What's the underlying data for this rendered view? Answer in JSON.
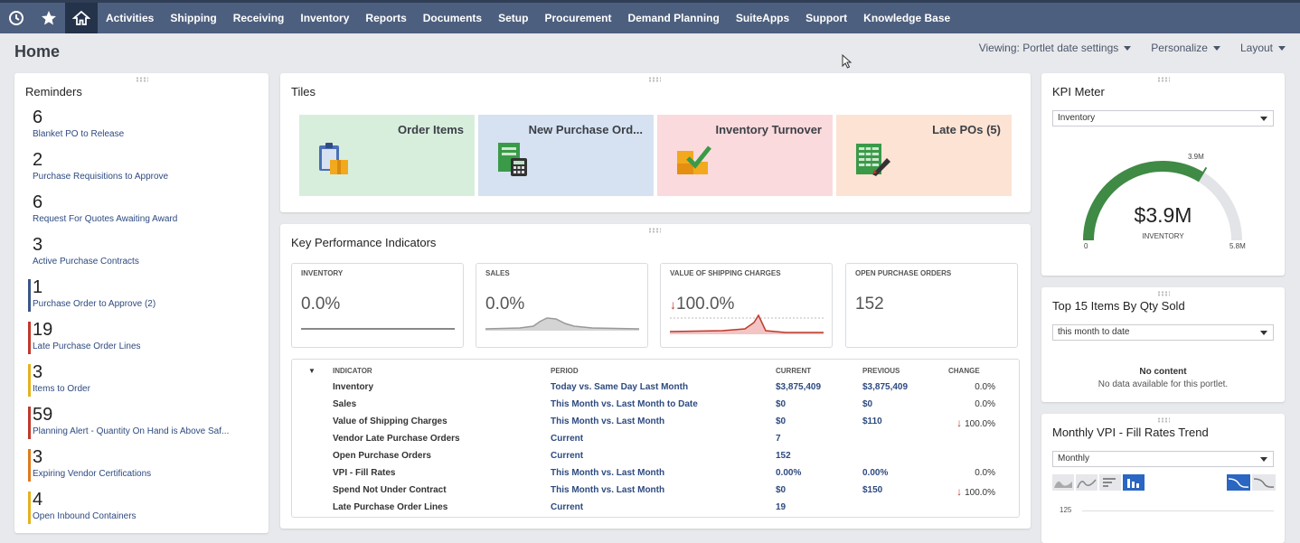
{
  "nav": {
    "items": [
      "Activities",
      "Shipping",
      "Receiving",
      "Inventory",
      "Reports",
      "Documents",
      "Setup",
      "Procurement",
      "Demand Planning",
      "SuiteApps",
      "Support",
      "Knowledge Base"
    ],
    "icons": [
      "recent-icon",
      "star-icon",
      "home-icon"
    ]
  },
  "page": {
    "title": "Home",
    "actions": [
      "Viewing: Portlet date settings",
      "Personalize",
      "Layout"
    ]
  },
  "reminders": {
    "title": "Reminders",
    "items": [
      {
        "count": "6",
        "label": "Blanket PO to Release",
        "color": ""
      },
      {
        "count": "2",
        "label": "Purchase Requisitions to Approve",
        "color": ""
      },
      {
        "count": "6",
        "label": "Request For Quotes Awaiting Award",
        "color": ""
      },
      {
        "count": "3",
        "label": "Active Purchase Contracts",
        "color": ""
      },
      {
        "count": "1",
        "label": "Purchase Order to Approve (2)",
        "color": "#3b5688"
      },
      {
        "count": "19",
        "label": "Late Purchase Order Lines",
        "color": "#c0392b"
      },
      {
        "count": "3",
        "label": "Items to Order",
        "color": "#e5b21f"
      },
      {
        "count": "59",
        "label": "Planning Alert - Quantity On Hand is Above Saf...",
        "color": "#c0392b"
      },
      {
        "count": "3",
        "label": "Expiring Vendor Certifications",
        "color": "#e07b1f"
      },
      {
        "count": "4",
        "label": "Open Inbound Containers",
        "color": "#e5b21f"
      }
    ]
  },
  "tiles": {
    "title": "Tiles",
    "items": [
      {
        "label": "Order Items",
        "bg": "#d8eedd"
      },
      {
        "label": "New Purchase Ord...",
        "bg": "#d6e2f2"
      },
      {
        "label": "Inventory Turnover",
        "bg": "#fadadd"
      },
      {
        "label": "Late POs (5)",
        "bg": "#fde3d4"
      }
    ]
  },
  "kpi": {
    "title": "Key Performance Indicators",
    "cards": [
      {
        "title": "INVENTORY",
        "value": "0.0%"
      },
      {
        "title": "SALES",
        "value": "0.0%"
      },
      {
        "title": "VALUE OF SHIPPING CHARGES",
        "value": "100.0%"
      },
      {
        "title": "OPEN PURCHASE ORDERS",
        "value": "152"
      }
    ],
    "table": {
      "headers": [
        "INDICATOR",
        "PERIOD",
        "CURRENT",
        "PREVIOUS",
        "CHANGE"
      ],
      "rows": [
        {
          "indicator": "Inventory",
          "period": "Today vs. Same Day Last Month",
          "current": "$3,875,409",
          "previous": "$3,875,409",
          "change": "0.0%",
          "down": false
        },
        {
          "indicator": "Sales",
          "period": "This Month vs. Last Month to Date",
          "current": "$0",
          "previous": "$0",
          "change": "0.0%",
          "down": false
        },
        {
          "indicator": "Value of Shipping Charges",
          "period": "This Month vs. Last Month",
          "current": "$0",
          "previous": "$110",
          "change": "100.0%",
          "down": true
        },
        {
          "indicator": "Vendor Late Purchase Orders",
          "period": "Current",
          "current": "7",
          "previous": "",
          "change": "",
          "down": false
        },
        {
          "indicator": "Open Purchase Orders",
          "period": "Current",
          "current": "152",
          "previous": "",
          "change": "",
          "down": false
        },
        {
          "indicator": "VPI - Fill Rates",
          "period": "This Month vs. Last Month",
          "current": "0.00%",
          "previous": "0.00%",
          "change": "0.0%",
          "down": false
        },
        {
          "indicator": "Spend Not Under Contract",
          "period": "This Month vs. Last Month",
          "current": "$0",
          "previous": "$150",
          "change": "100.0%",
          "down": true
        },
        {
          "indicator": "Late Purchase Order Lines",
          "period": "Current",
          "current": "19",
          "previous": "",
          "change": "",
          "down": false
        }
      ]
    }
  },
  "kpi_meter": {
    "title": "KPI Meter",
    "select": "Inventory",
    "value": "$3.9M",
    "sublabel": "INVENTORY",
    "min": "0",
    "max": "5.8M",
    "marker": "3.9M",
    "fraction": 0.672
  },
  "top_items": {
    "title": "Top 15 Items By Qty Sold",
    "select": "this month to date",
    "empty_title": "No content",
    "empty_text": "No data available for this portlet."
  },
  "vpi": {
    "title": "Monthly VPI - Fill Rates Trend",
    "select": "Monthly",
    "axis_tick": "125"
  }
}
